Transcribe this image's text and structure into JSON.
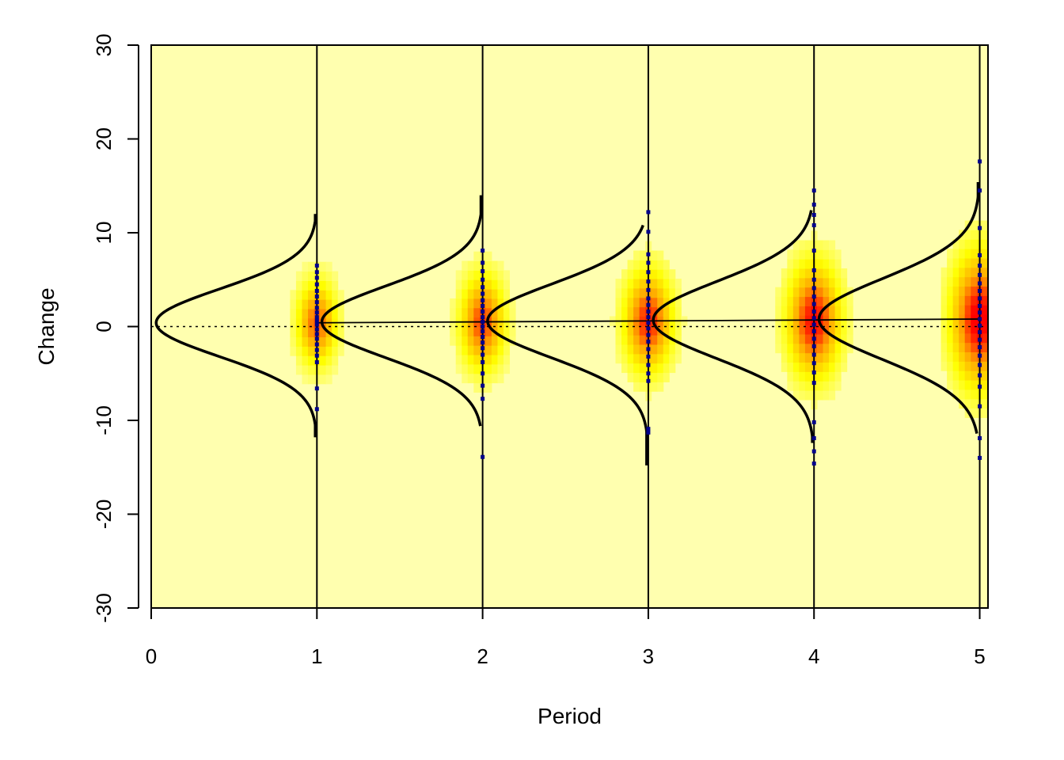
{
  "chart_data": {
    "type": "scatter",
    "title": "",
    "xlabel": "Period",
    "ylabel": "Change",
    "xlim": [
      0,
      5.05
    ],
    "ylim": [
      -30,
      30
    ],
    "x_ticks": [
      "0",
      "1",
      "2",
      "3",
      "4",
      "5"
    ],
    "y_ticks": [
      "-30",
      "-20",
      "-10",
      "0",
      "10",
      "20",
      "30"
    ],
    "grid": false,
    "background_color": "#FFFFAF",
    "reference_line": {
      "y": 0,
      "style": "dotted"
    },
    "mean_trend": {
      "x": [
        1,
        2,
        3,
        4,
        5
      ],
      "y": [
        0.4,
        0.5,
        0.6,
        0.7,
        0.8
      ]
    },
    "densities": [
      {
        "period": 0,
        "center": 0.4,
        "sd": 3.6,
        "min": -11.8,
        "max": 12.0
      },
      {
        "period": 1,
        "center": 0.5,
        "sd": 3.8,
        "min": -10.6,
        "max": 14.0
      },
      {
        "period": 2,
        "center": 0.6,
        "sd": 3.9,
        "min": -14.8,
        "max": 10.8
      },
      {
        "period": 3,
        "center": 0.7,
        "sd": 4.1,
        "min": -12.4,
        "max": 12.4
      },
      {
        "period": 4,
        "center": 0.8,
        "sd": 4.3,
        "min": -11.4,
        "max": 15.4
      }
    ],
    "observed_points": [
      {
        "period": 1,
        "values": [
          6.5,
          5.8,
          5.2,
          4.5,
          3.8,
          3.2,
          2.6,
          2.0,
          1.5,
          1.0,
          0.6,
          0.2,
          -0.3,
          -0.8,
          -1.3,
          -1.9,
          -2.5,
          -3.1,
          -3.8,
          -6.6,
          -8.8
        ]
      },
      {
        "period": 2,
        "values": [
          8.1,
          6.8,
          5.9,
          5.0,
          4.2,
          3.5,
          2.8,
          2.2,
          1.6,
          1.0,
          0.5,
          0.0,
          -0.5,
          -1.1,
          -1.7,
          -2.3,
          -3.0,
          -3.8,
          -5.0,
          -6.3,
          -7.7,
          -13.9
        ]
      },
      {
        "period": 3,
        "values": [
          12.2,
          10.1,
          7.7,
          6.8,
          5.8,
          4.8,
          3.9,
          3.0,
          2.3,
          1.6,
          1.0,
          0.4,
          -0.2,
          -0.9,
          -1.6,
          -2.4,
          -3.2,
          -4.1,
          -5.0,
          -5.8,
          -10.9,
          -11.3
        ]
      },
      {
        "period": 4,
        "values": [
          14.5,
          13.0,
          11.9,
          10.8,
          8.1,
          6.0,
          5.0,
          4.1,
          3.2,
          2.4,
          1.6,
          0.9,
          0.2,
          -0.5,
          -1.3,
          -2.1,
          -3.0,
          -3.9,
          -4.9,
          -6.0,
          -10.2,
          -11.9,
          -13.3,
          -14.6
        ]
      },
      {
        "period": 5,
        "values": [
          17.6,
          14.5,
          10.5,
          7.6,
          6.5,
          5.5,
          4.6,
          3.8,
          3.0,
          2.2,
          1.5,
          0.8,
          0.1,
          -0.6,
          -1.4,
          -2.2,
          -3.1,
          -4.1,
          -5.2,
          -6.4,
          -8.5,
          -11.9,
          -14.0
        ]
      }
    ],
    "heat_columns": [
      {
        "period": 1,
        "spread": 3.2
      },
      {
        "period": 2,
        "spread": 3.6
      },
      {
        "period": 3,
        "spread": 3.9
      },
      {
        "period": 4,
        "spread": 4.4
      },
      {
        "period": 5,
        "spread": 5.2
      }
    ],
    "colors": {
      "background": "#FFFFAF",
      "heat_low": "#FFFF00",
      "heat_mid": "#FFA500",
      "heat_high": "#FF0000",
      "points": "#00008B",
      "curves": "#000000"
    }
  }
}
